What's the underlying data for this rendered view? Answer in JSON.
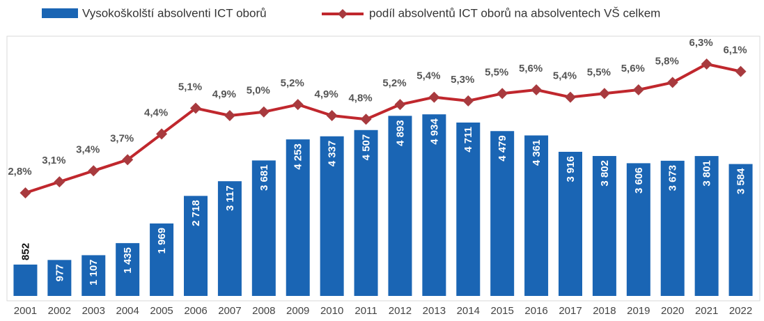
{
  "chart_data": {
    "type": "bar_line",
    "categories": [
      "2001",
      "2002",
      "2003",
      "2004",
      "2005",
      "2006",
      "2007",
      "2008",
      "2009",
      "2010",
      "2011",
      "2012",
      "2013",
      "2014",
      "2015",
      "2016",
      "2017",
      "2018",
      "2019",
      "2020",
      "2021",
      "2022"
    ],
    "series": [
      {
        "name": "Vysokoškolští absolventi ICT oborů",
        "type": "bar",
        "color": "#1a65b4",
        "values": [
          852,
          977,
          1107,
          1435,
          1969,
          2718,
          3117,
          3681,
          4253,
          4337,
          4507,
          4893,
          4934,
          4711,
          4479,
          4361,
          3916,
          3802,
          3606,
          3673,
          3801,
          3584
        ],
        "value_labels": [
          "852",
          "977",
          "1 107",
          "1 435",
          "1 969",
          "2 718",
          "3 117",
          "3 681",
          "4 253",
          "4 337",
          "4 507",
          "4 893",
          "4 934",
          "4 711",
          "4 479",
          "4 361",
          "3 916",
          "3 802",
          "3 606",
          "3 673",
          "3 801",
          "3 584"
        ]
      },
      {
        "name": "podíl absolventů ICT oborů na absolventech VŠ celkem",
        "type": "line",
        "axis": "y2",
        "color": "#c0272d",
        "marker_color": "#a83a3e",
        "values": [
          2.8,
          3.1,
          3.4,
          3.7,
          4.4,
          5.1,
          4.9,
          5.0,
          5.2,
          4.9,
          4.8,
          5.2,
          5.4,
          5.3,
          5.5,
          5.6,
          5.4,
          5.5,
          5.6,
          5.8,
          6.3,
          6.1
        ],
        "value_labels": [
          "2,8%",
          "3,1%",
          "3,4%",
          "3,7%",
          "4,4%",
          "5,1%",
          "4,9%",
          "5,0%",
          "5,2%",
          "4,9%",
          "4,8%",
          "5,2%",
          "5,4%",
          "5,3%",
          "5,5%",
          "5,6%",
          "5,4%",
          "5,5%",
          "5,6%",
          "5,8%",
          "6,3%",
          "6,1%"
        ]
      }
    ],
    "ylim": [
      0,
      7000
    ],
    "y2lim": [
      0,
      7
    ],
    "legend": "top"
  }
}
